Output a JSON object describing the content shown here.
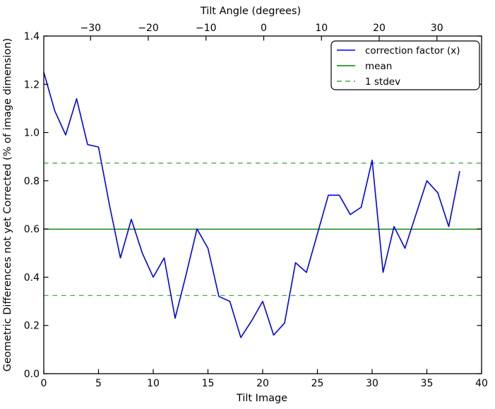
{
  "chart_data": {
    "type": "line",
    "top_axis_label": "Tilt Angle (degrees)",
    "xlabel": "Tilt Image",
    "ylabel": "Geometric Differences not yet Corrected (% of image dimension)",
    "xlim": [
      0,
      40
    ],
    "ylim": [
      0,
      1.4
    ],
    "grid": false,
    "x_ticks": [
      0,
      5,
      10,
      15,
      20,
      25,
      30,
      35,
      40
    ],
    "x_tick_labels": [
      "0",
      "5",
      "10",
      "15",
      "20",
      "25",
      "30",
      "35",
      "40"
    ],
    "y_ticks": [
      0.0,
      0.2,
      0.4,
      0.6,
      0.8,
      1.0,
      1.2,
      1.4
    ],
    "y_tick_labels": [
      "0.0",
      "0.2",
      "0.4",
      "0.6",
      "0.8",
      "1.0",
      "1.2",
      "1.4"
    ],
    "top_ticks": [
      -30,
      -20,
      -10,
      0,
      10,
      20,
      30
    ],
    "top_tick_labels": [
      "−30",
      "−20",
      "−10",
      "0",
      "10",
      "20",
      "30"
    ],
    "series": [
      {
        "name": "correction factor (x)",
        "color": "#0000f0",
        "style": "solid",
        "x": [
          0,
          1,
          2,
          3,
          4,
          5,
          6,
          7,
          8,
          9,
          10,
          11,
          12,
          13,
          14,
          15,
          16,
          17,
          18,
          19,
          20,
          21,
          22,
          23,
          24,
          25,
          26,
          27,
          28,
          29,
          30,
          31,
          32,
          33,
          34,
          35,
          36,
          37,
          38
        ],
        "values": [
          1.25,
          1.09,
          0.99,
          1.14,
          0.95,
          0.94,
          0.7,
          0.48,
          0.64,
          0.5,
          0.4,
          0.48,
          0.23,
          0.41,
          0.6,
          0.52,
          0.32,
          0.3,
          0.15,
          0.22,
          0.3,
          0.16,
          0.21,
          0.46,
          0.42,
          0.58,
          0.74,
          0.74,
          0.66,
          0.69,
          0.885,
          0.42,
          0.61,
          0.52,
          0.66,
          0.8,
          0.75,
          0.61,
          0.84
        ]
      },
      {
        "name": "mean",
        "color": "#008000",
        "style": "solid",
        "value": 0.599
      },
      {
        "name": "1 stdev",
        "color": "#44aa44",
        "style": "dashed",
        "values": [
          0.873,
          0.324
        ]
      }
    ],
    "stats": {
      "mean": 0.599,
      "stdev": 0.275
    },
    "legend": {
      "position": "upper right",
      "items": [
        {
          "label": "correction factor (x)",
          "color": "#0000f0",
          "dash": false
        },
        {
          "label": "mean",
          "color": "#008000",
          "dash": false
        },
        {
          "label": "1 stdev",
          "color": "#44aa44",
          "dash": true
        }
      ]
    },
    "colors": {
      "line": "#0000f0",
      "mean_line": "#008000",
      "stdev_line": "#44aa44",
      "frame": "#000000",
      "background": "#ffffff"
    }
  }
}
